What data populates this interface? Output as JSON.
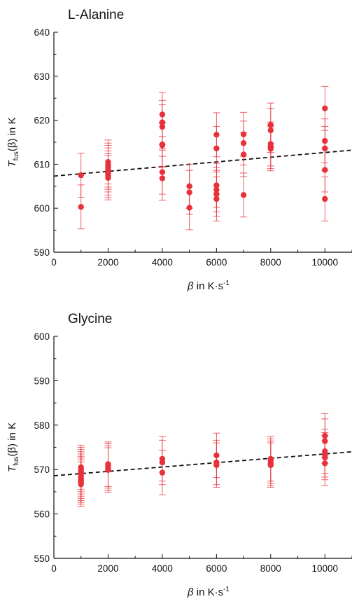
{
  "chart_data": [
    {
      "type": "scatter",
      "title": "L-Alanine",
      "xlabel": "β in K·s⁻¹",
      "ylabel": "T_fus(β) in K",
      "ylabel_parts": {
        "main": "T",
        "sub": "fus",
        "tail": "(β) in K"
      },
      "xlabel_parts": {
        "main": "β",
        "tail": " in K·s",
        "sup": "-1"
      },
      "xlim": [
        0,
        11000
      ],
      "ylim": [
        590,
        640
      ],
      "xticks": [
        0,
        2000,
        4000,
        6000,
        8000,
        10000
      ],
      "yticks": [
        590,
        600,
        610,
        620,
        630,
        640
      ],
      "grid": false,
      "color_points": "#e8313a",
      "color_fit": "#111111",
      "series": [
        {
          "type": "scatter_errorbar",
          "points": [
            {
              "x": 1000,
              "y": 607.5,
              "err": 5
            },
            {
              "x": 1000,
              "y": 600.3,
              "err": 5
            },
            {
              "x": 2000,
              "y": 610.5,
              "err": 5
            },
            {
              "x": 2000,
              "y": 609.8,
              "err": 5
            },
            {
              "x": 2000,
              "y": 609.3,
              "err": 5
            },
            {
              "x": 2000,
              "y": 608.7,
              "err": 5
            },
            {
              "x": 2000,
              "y": 608.0,
              "err": 5
            },
            {
              "x": 2000,
              "y": 607.4,
              "err": 5
            },
            {
              "x": 2000,
              "y": 606.9,
              "err": 5
            },
            {
              "x": 4000,
              "y": 621.3,
              "err": 5
            },
            {
              "x": 4000,
              "y": 619.5,
              "err": 5
            },
            {
              "x": 4000,
              "y": 618.5,
              "err": 5
            },
            {
              "x": 4000,
              "y": 614.5,
              "err": 5
            },
            {
              "x": 4000,
              "y": 614.3,
              "err": 5
            },
            {
              "x": 4000,
              "y": 608.2,
              "err": 5
            },
            {
              "x": 4000,
              "y": 606.8,
              "err": 5
            },
            {
              "x": 5000,
              "y": 605.0,
              "err": 5
            },
            {
              "x": 5000,
              "y": 603.6,
              "err": 5
            },
            {
              "x": 5000,
              "y": 600.1,
              "err": 5
            },
            {
              "x": 6000,
              "y": 616.7,
              "err": 5
            },
            {
              "x": 6000,
              "y": 613.6,
              "err": 5
            },
            {
              "x": 6000,
              "y": 605.2,
              "err": 5
            },
            {
              "x": 6000,
              "y": 604.2,
              "err": 5
            },
            {
              "x": 6000,
              "y": 603.2,
              "err": 5
            },
            {
              "x": 6000,
              "y": 602.1,
              "err": 5
            },
            {
              "x": 7000,
              "y": 616.8,
              "err": 5
            },
            {
              "x": 7000,
              "y": 614.8,
              "err": 5
            },
            {
              "x": 7000,
              "y": 612.2,
              "err": 5
            },
            {
              "x": 7000,
              "y": 603.0,
              "err": 5
            },
            {
              "x": 8000,
              "y": 618.9,
              "err": 5
            },
            {
              "x": 8000,
              "y": 617.7,
              "err": 5
            },
            {
              "x": 8000,
              "y": 614.6,
              "err": 5
            },
            {
              "x": 8000,
              "y": 614.0,
              "err": 5
            },
            {
              "x": 8000,
              "y": 613.5,
              "err": 5
            },
            {
              "x": 10000,
              "y": 622.7,
              "err": 5
            },
            {
              "x": 10000,
              "y": 615.3,
              "err": 5
            },
            {
              "x": 10000,
              "y": 613.6,
              "err": 5
            },
            {
              "x": 10000,
              "y": 608.7,
              "err": 5
            },
            {
              "x": 10000,
              "y": 602.1,
              "err": 5
            }
          ]
        },
        {
          "type": "line",
          "style": "dashed",
          "x": [
            0,
            11000
          ],
          "y": [
            607.3,
            613.2
          ]
        }
      ]
    },
    {
      "type": "scatter",
      "title": "Glycine",
      "xlabel": "β in K·s⁻¹",
      "ylabel": "T_fus(β) in K",
      "ylabel_parts": {
        "main": "T",
        "sub": "fus",
        "tail": "(β) in K"
      },
      "xlabel_parts": {
        "main": "β",
        "tail": " in K·s",
        "sup": "-1"
      },
      "xlim": [
        0,
        11000
      ],
      "ylim": [
        550,
        600
      ],
      "xticks": [
        0,
        2000,
        4000,
        6000,
        8000,
        10000
      ],
      "yticks": [
        550,
        560,
        570,
        580,
        590,
        600
      ],
      "grid": false,
      "color_points": "#e8313a",
      "color_fit": "#111111",
      "series": [
        {
          "type": "scatter_errorbar",
          "points": [
            {
              "x": 1000,
              "y": 570.5,
              "err": 5
            },
            {
              "x": 1000,
              "y": 570.0,
              "err": 5
            },
            {
              "x": 1000,
              "y": 569.5,
              "err": 5
            },
            {
              "x": 1000,
              "y": 569.0,
              "err": 5
            },
            {
              "x": 1000,
              "y": 568.5,
              "err": 5
            },
            {
              "x": 1000,
              "y": 568.0,
              "err": 5
            },
            {
              "x": 1000,
              "y": 567.6,
              "err": 5
            },
            {
              "x": 1000,
              "y": 567.2,
              "err": 5
            },
            {
              "x": 1000,
              "y": 566.7,
              "err": 5
            },
            {
              "x": 2000,
              "y": 571.2,
              "err": 5
            },
            {
              "x": 2000,
              "y": 570.8,
              "err": 5
            },
            {
              "x": 2000,
              "y": 570.3,
              "err": 5
            },
            {
              "x": 2000,
              "y": 569.9,
              "err": 5
            },
            {
              "x": 4000,
              "y": 572.4,
              "err": 5
            },
            {
              "x": 4000,
              "y": 571.6,
              "err": 5
            },
            {
              "x": 4000,
              "y": 569.3,
              "err": 5
            },
            {
              "x": 6000,
              "y": 573.2,
              "err": 5
            },
            {
              "x": 6000,
              "y": 571.6,
              "err": 5
            },
            {
              "x": 6000,
              "y": 571.0,
              "err": 5
            },
            {
              "x": 8000,
              "y": 572.4,
              "err": 5
            },
            {
              "x": 8000,
              "y": 571.9,
              "err": 5
            },
            {
              "x": 8000,
              "y": 571.4,
              "err": 5
            },
            {
              "x": 8000,
              "y": 571.0,
              "err": 5
            },
            {
              "x": 10000,
              "y": 577.6,
              "err": 5
            },
            {
              "x": 10000,
              "y": 576.4,
              "err": 5
            },
            {
              "x": 10000,
              "y": 574.1,
              "err": 5
            },
            {
              "x": 10000,
              "y": 573.3,
              "err": 5
            },
            {
              "x": 10000,
              "y": 572.7,
              "err": 5
            },
            {
              "x": 10000,
              "y": 571.4,
              "err": 5
            }
          ]
        },
        {
          "type": "line",
          "style": "dashed",
          "x": [
            0,
            11000
          ],
          "y": [
            568.6,
            574.0
          ]
        }
      ]
    }
  ]
}
